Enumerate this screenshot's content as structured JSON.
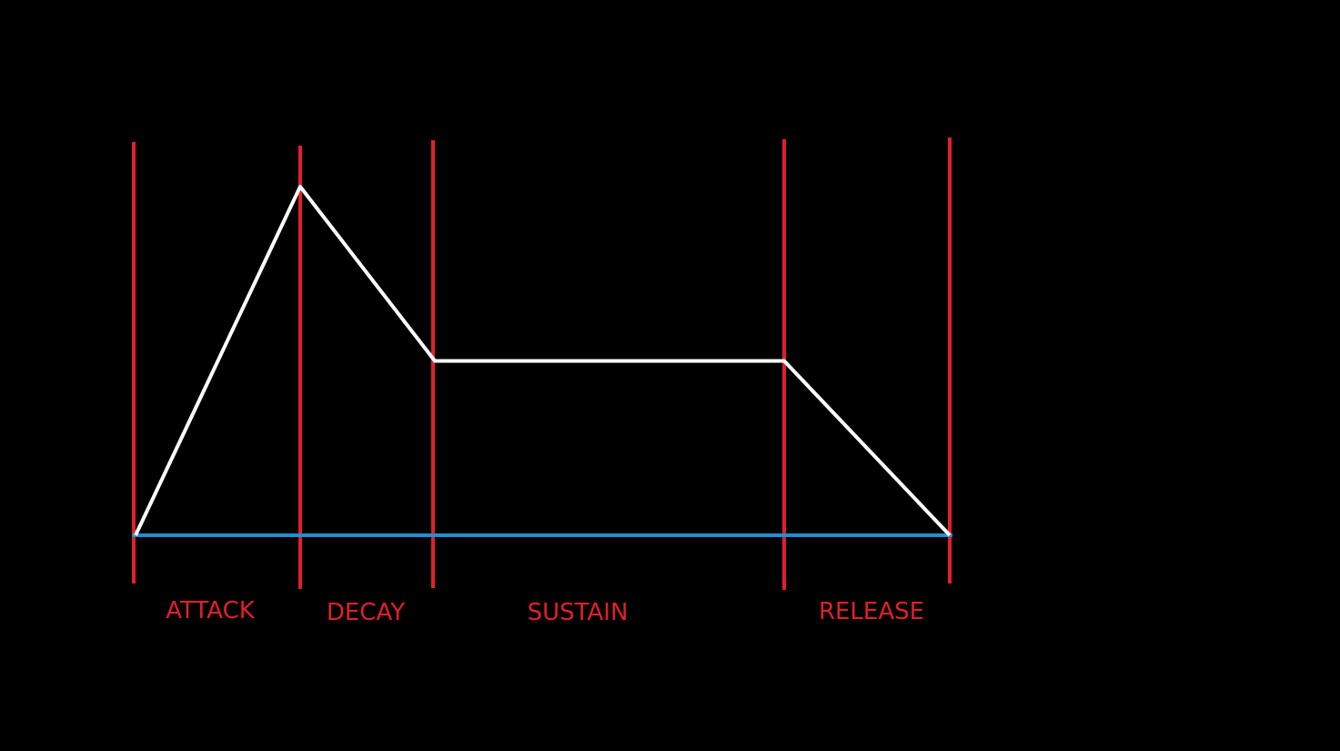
{
  "colors": {
    "background": "#000000",
    "divider": "#e0202a",
    "envelope": "#ffffff",
    "baseline": "#1f8fd6",
    "label": "#e0202a"
  },
  "phases": [
    {
      "id": "attack",
      "label": "ATTACK"
    },
    {
      "id": "decay",
      "label": "DECAY"
    },
    {
      "id": "sustain",
      "label": "SUSTAIN"
    },
    {
      "id": "release",
      "label": "RELEASE"
    }
  ],
  "envelope": {
    "peak_level": 1.0,
    "sustain_level": 0.5,
    "end_level": 0.0
  }
}
